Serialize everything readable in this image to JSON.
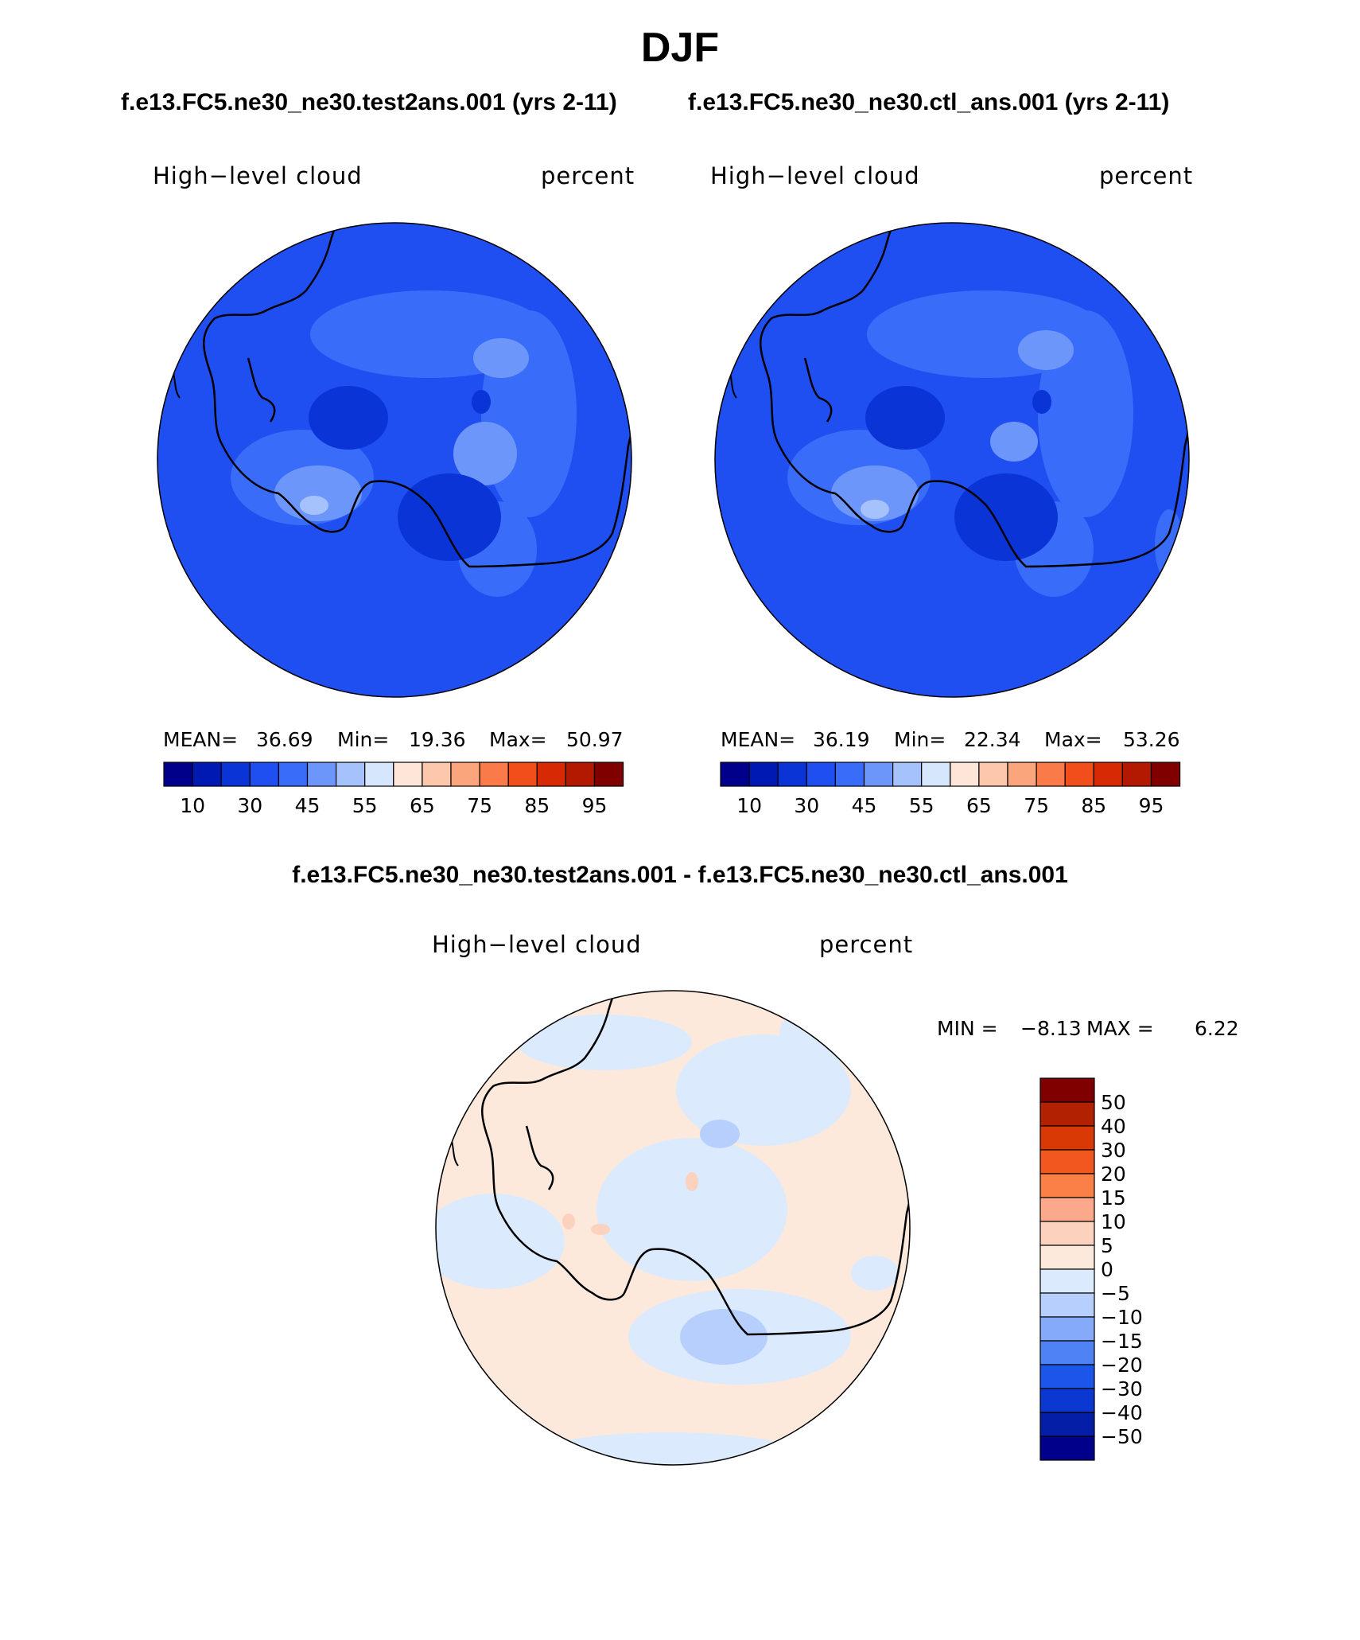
{
  "title": "DJF",
  "top_panels": [
    {
      "case_title": "f.e13.FC5.ne30_ne30.test2ans.001 (yrs 2-11)",
      "variable": "High−level cloud",
      "units": "percent",
      "stats": {
        "mean_label": "MEAN=",
        "mean": "36.69",
        "min_label": "Min=",
        "min": "19.36",
        "max_label": "Max=",
        "max": "50.97"
      }
    },
    {
      "case_title": "f.e13.FC5.ne30_ne30.ctl_ans.001 (yrs 2-11)",
      "variable": "High−level cloud",
      "units": "percent",
      "stats": {
        "mean_label": "MEAN=",
        "mean": "36.19",
        "min_label": "Min=",
        "min": "22.34",
        "max_label": "Max=",
        "max": "53.26"
      }
    }
  ],
  "top_colorbar": {
    "colors": [
      "#00008b",
      "#0019b3",
      "#0a34d6",
      "#1f4ff0",
      "#3a6cfa",
      "#6d96fb",
      "#a6c2fc",
      "#d6e6fd",
      "#fde6d8",
      "#fcc7ab",
      "#fba57d",
      "#fb7a4a",
      "#f24e1c",
      "#d72a04",
      "#b31800",
      "#800000"
    ],
    "tick_labels": [
      "10",
      "30",
      "45",
      "55",
      "65",
      "75",
      "85",
      "95"
    ]
  },
  "bottom_panel": {
    "title": "f.e13.FC5.ne30_ne30.test2ans.001 - f.e13.FC5.ne30_ne30.ctl_ans.001",
    "variable": "High−level cloud",
    "units": "percent",
    "minmax": {
      "min_label": "MIN =",
      "min": "−8.13",
      "max_label": "MAX =",
      "max": "6.22"
    },
    "colorbar": {
      "colors_top_to_bottom": [
        "#800000",
        "#b32200",
        "#d93a05",
        "#f25720",
        "#fb8048",
        "#fba98a",
        "#fbd2bd",
        "#fde9dc",
        "#dbeafd",
        "#b6cffc",
        "#84aaf9",
        "#4f82f5",
        "#1c55ea",
        "#0b38d0",
        "#041ea8",
        "#00008b"
      ],
      "labels_top_to_bottom": [
        "50",
        "40",
        "30",
        "20",
        "15",
        "10",
        "5",
        "0",
        "−5",
        "−10",
        "−15",
        "−20",
        "−30",
        "−40",
        "−50"
      ]
    }
  },
  "palette": {
    "ocean_blue": "#1f4ff0",
    "interior_dark": "#0a34d6",
    "mid_blue": "#3a6cfa",
    "light_blue": "#6d96fb",
    "pale_blue": "#a6c2fc",
    "diff_pos": "#fde9dc",
    "diff_neg": "#dbeafd",
    "diff_neg2": "#b6cffc",
    "diff_pos2": "#fbd2bd"
  }
}
